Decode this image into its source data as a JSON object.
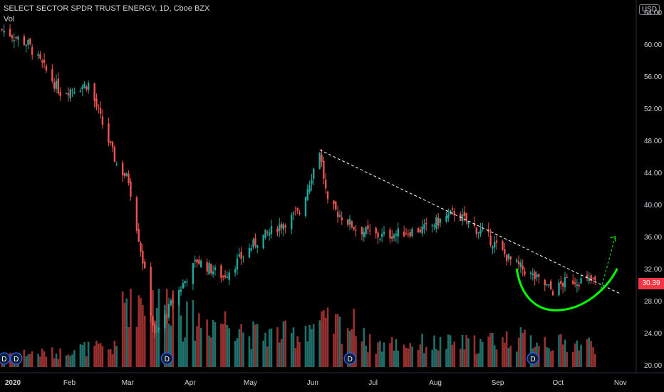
{
  "header": {
    "title": "SELECT SECTOR SPDR TRUST ENERGY, 1D, Cboe BZX",
    "indicator": "Vol"
  },
  "currency_badge": "USD",
  "last_price_tag": "30.39",
  "event_marker_label": "D",
  "colors": {
    "background": "#000000",
    "up": "#26a69a",
    "down": "#ef5350",
    "up_volume": "#1f6f6a",
    "down_volume": "#9a2f2f",
    "trendline": "#ffffff",
    "cup_drawing": "#00ff00",
    "price_tag": "#f23645",
    "axis_text": "#d1d4dc"
  },
  "chart_data": {
    "type": "candlestick",
    "title": "SELECT SECTOR SPDR TRUST ENERGY, 1D, Cboe BZX",
    "x_axis": {
      "tick_labels": [
        "2020",
        "Feb",
        "Mar",
        "Apr",
        "May",
        "Jun",
        "Jul",
        "Aug",
        "Sep",
        "Oct",
        "Nov"
      ],
      "range": [
        "2020-01-01",
        "2020-11-05"
      ]
    },
    "y_axis": {
      "position": "right",
      "unit": "USD",
      "tick_labels": [
        "64.00",
        "60.00",
        "56.00",
        "52.00",
        "48.00",
        "44.00",
        "40.00",
        "36.00",
        "32.00",
        "28.00",
        "24.00",
        "20.00"
      ],
      "range": [
        19.0,
        65.5
      ]
    },
    "last_price": 30.39,
    "approximate_closes": {
      "2020-01-02": 61.8,
      "2020-01-15": 60.0,
      "2020-01-31": 54.0,
      "2020-02-14": 55.0,
      "2020-02-28": 45.0,
      "2020-03-05": 43.0,
      "2020-03-12": 33.0,
      "2020-03-18": 23.5,
      "2020-03-27": 28.0,
      "2020-04-08": 33.0,
      "2020-04-21": 31.0,
      "2020-05-08": 35.5,
      "2020-05-29": 39.0,
      "2020-06-08": 46.8,
      "2020-06-12": 40.0,
      "2020-06-26": 37.0,
      "2020-07-08": 36.0,
      "2020-07-31": 37.0,
      "2020-08-14": 39.0,
      "2020-08-31": 35.8,
      "2020-09-11": 33.0,
      "2020-09-25": 30.5,
      "2020-10-02": 29.2,
      "2020-10-09": 30.5,
      "2020-10-16": 30.5,
      "2020-10-23": 30.39
    },
    "volume_indicator": {
      "name": "Vol",
      "relative_levels": {
        "2020-01": 0.15,
        "2020-02": 0.2,
        "2020-03": 0.75,
        "2020-04": 0.5,
        "2020-05": 0.35,
        "2020-06": 0.45,
        "2020-07": 0.25,
        "2020-08": 0.25,
        "2020-09": 0.3,
        "2020-10": 0.25
      }
    },
    "event_markers": [
      "2020-01-02",
      "2020-01-08",
      "2020-03-23",
      "2020-06-22",
      "2020-09-21"
    ],
    "annotations": [
      {
        "type": "dashed-trendline",
        "from": {
          "date": "2020-06-08",
          "price": 46.8
        },
        "to": {
          "date": "2020-11-05",
          "price": 28.8
        }
      },
      {
        "type": "cup-curve",
        "start": {
          "date": "2020-09-14",
          "price": 32.0
        },
        "bottom": {
          "date": "2020-10-05",
          "price": 26.8
        },
        "end": {
          "date": "2020-11-03",
          "price": 32.0
        }
      },
      {
        "type": "dashed-projection-arrow",
        "from": {
          "date": "2020-10-26",
          "price": 29.5
        },
        "to": {
          "date": "2020-11-02",
          "price": 36.0
        }
      }
    ]
  }
}
